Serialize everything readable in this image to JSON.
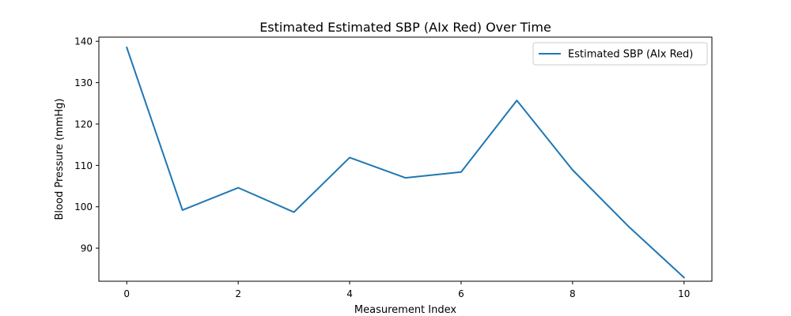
{
  "chart_data": {
    "type": "line",
    "title": "Estimated Estimated SBP (AIx Red) Over Time",
    "xlabel": "Measurement Index",
    "ylabel": "Blood Pressure (mmHg)",
    "xlim": [
      -0.5,
      10.5
    ],
    "ylim": [
      82,
      141
    ],
    "xticks": [
      0,
      2,
      4,
      6,
      8,
      10
    ],
    "yticks": [
      90,
      100,
      110,
      120,
      130,
      140
    ],
    "grid": false,
    "legend_position": "top-right",
    "series": [
      {
        "name": "Estimated SBP (AIx Red)",
        "color": "#1f77b4",
        "x": [
          0,
          1,
          2,
          3,
          4,
          5,
          6,
          7,
          8,
          9,
          10
        ],
        "y": [
          138.5,
          99.2,
          104.6,
          98.7,
          111.9,
          107.0,
          108.4,
          125.7,
          108.9,
          95.3,
          82.9
        ]
      }
    ]
  }
}
